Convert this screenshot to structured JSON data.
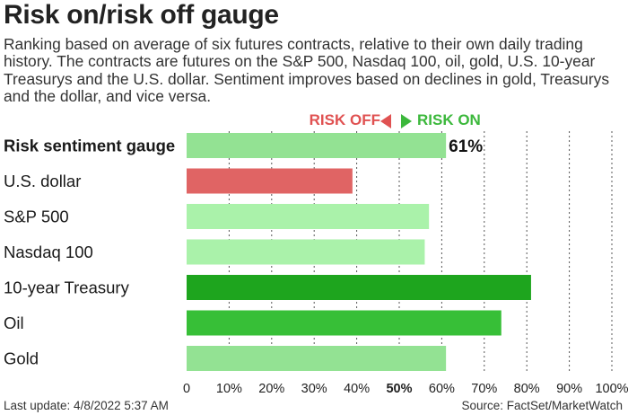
{
  "header": {
    "title": "Risk on/risk off gauge",
    "subtitle": "Ranking based on average of six futures contracts, relative to their own daily trading history. The contracts are futures on the S&P 500, Nasdaq 100, oil, gold, U.S. 10-year Treasurys and the U.S. dollar. Sentiment improves based on declines in gold, Treasurys and the dollar, and vice versa."
  },
  "legend": {
    "risk_off": "RISK OFF",
    "risk_on": "RISK ON",
    "risk_off_color": "#e05252",
    "risk_on_color": "#3cb83c"
  },
  "chart_data": {
    "type": "bar",
    "orientation": "horizontal",
    "categories": [
      "Risk sentiment gauge",
      "U.S. dollar",
      "S&P 500",
      "Nasdaq 100",
      "10-year Treasury",
      "Oil",
      "Gold"
    ],
    "values": [
      61,
      39,
      57,
      56,
      81,
      74,
      61
    ],
    "colors": [
      "#93e293",
      "#e06464",
      "#aaf2aa",
      "#aaf2aa",
      "#1ea51e",
      "#37bf37",
      "#93e293"
    ],
    "bold_category_index": 0,
    "data_labels": [
      "61%",
      "",
      "",
      "",
      "",
      "",
      ""
    ],
    "x_ticks": [
      "0",
      "10%",
      "20%",
      "30%",
      "40%",
      "50%",
      "60%",
      "70%",
      "80%",
      "90%",
      "100%"
    ],
    "bold_tick_index": 5,
    "xlim": [
      0,
      100
    ],
    "grid": "vertical dotted",
    "legend": "top-center"
  },
  "footer": {
    "last_update": "Last update: 4/8/2022 5:37 AM",
    "source": "Source: FactSet/MarketWatch"
  }
}
